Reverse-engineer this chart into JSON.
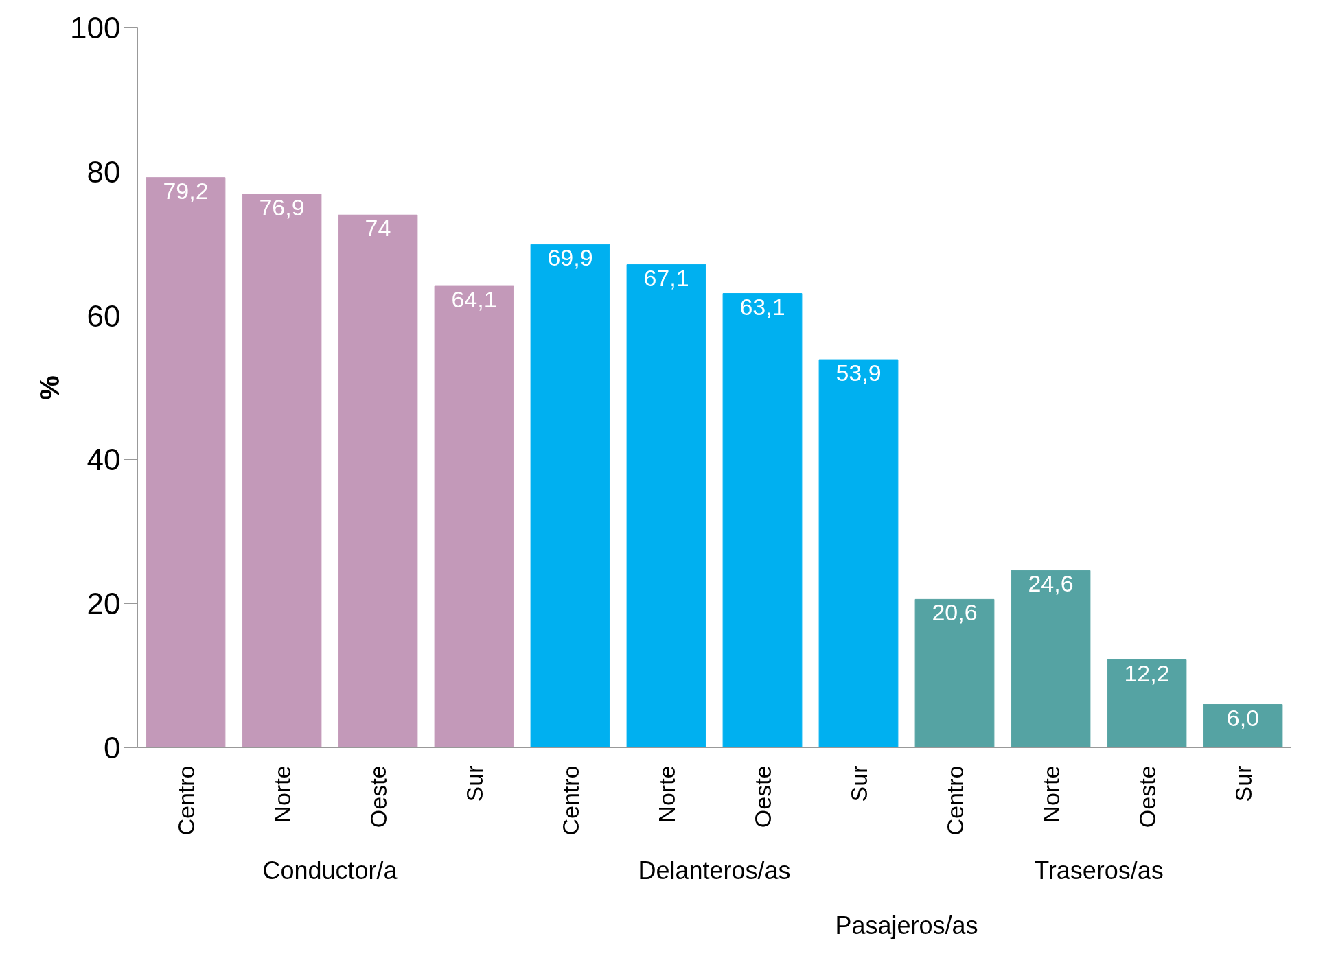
{
  "chart_data": {
    "type": "bar",
    "ylabel": "%",
    "categories": [
      "Centro",
      "Norte",
      "Oeste",
      "Sur",
      "Centro",
      "Norte",
      "Oeste",
      "Sur",
      "Centro",
      "Norte",
      "Oeste",
      "Sur"
    ],
    "values": [
      79.2,
      76.9,
      74,
      64.1,
      69.9,
      67.1,
      63.1,
      53.9,
      20.6,
      24.6,
      12.2,
      6.0
    ],
    "value_labels": [
      "79,2",
      "76,9",
      "74",
      "64,1",
      "69,9",
      "67,1",
      "63,1",
      "53,9",
      "20,6",
      "24,6",
      "12,2",
      "6,0"
    ],
    "colors": [
      "#c399b9",
      "#c399b9",
      "#c399b9",
      "#c399b9",
      "#00b0f0",
      "#00b0f0",
      "#00b0f0",
      "#00b0f0",
      "#55a3a3",
      "#55a3a3",
      "#55a3a3",
      "#55a3a3"
    ],
    "annotations": [
      "Conductor/a",
      "Delanteros/as",
      "Traseros/as",
      "Pasajeros/as"
    ],
    "ylim": [
      0,
      100
    ],
    "yticks": [
      0,
      20,
      40,
      60,
      80,
      100
    ],
    "grid": false
  }
}
